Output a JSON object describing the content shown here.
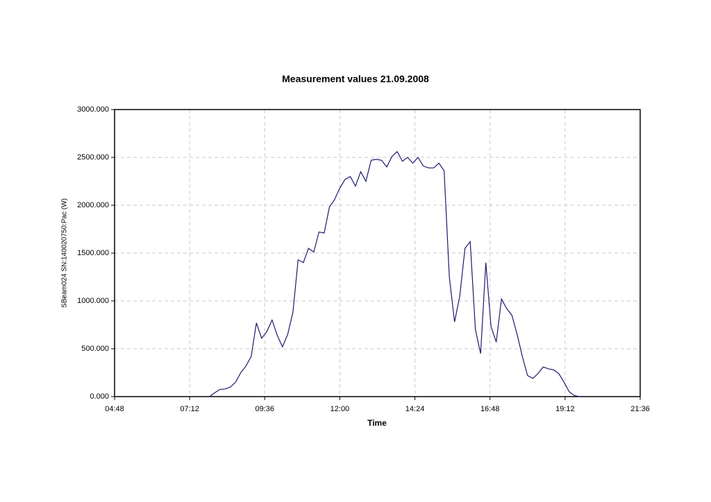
{
  "chart_data": {
    "type": "line",
    "title": "Measurement values 21.09.2008",
    "xlabel": "Time",
    "ylabel": "SBeam024 SN:140020750:Pac (W)",
    "color": "#1a1a6e",
    "grid": true,
    "x": [
      "07:50",
      "08:00",
      "08:10",
      "08:20",
      "08:30",
      "08:40",
      "08:50",
      "09:00",
      "09:10",
      "09:20",
      "09:30",
      "09:40",
      "09:50",
      "10:00",
      "10:10",
      "10:20",
      "10:30",
      "10:40",
      "10:50",
      "11:00",
      "11:10",
      "11:20",
      "11:30",
      "11:40",
      "11:50",
      "12:00",
      "12:10",
      "12:20",
      "12:30",
      "12:40",
      "12:50",
      "13:00",
      "13:10",
      "13:20",
      "13:30",
      "13:40",
      "13:50",
      "14:00",
      "14:10",
      "14:20",
      "14:30",
      "14:40",
      "14:50",
      "15:00",
      "15:10",
      "15:20",
      "15:30",
      "15:40",
      "15:50",
      "16:00",
      "16:10",
      "16:20",
      "16:30",
      "16:40",
      "16:50",
      "17:00",
      "17:10",
      "17:20",
      "17:30",
      "17:40",
      "17:50",
      "18:00",
      "18:10",
      "18:20",
      "18:30",
      "18:40",
      "18:50",
      "19:00",
      "19:10",
      "19:20",
      "19:30",
      "19:40"
    ],
    "values": [
      0,
      40,
      75,
      80,
      100,
      150,
      250,
      320,
      420,
      770,
      610,
      680,
      800,
      640,
      520,
      650,
      880,
      1430,
      1400,
      1550,
      1510,
      1720,
      1710,
      1980,
      2060,
      2180,
      2270,
      2300,
      2200,
      2350,
      2250,
      2470,
      2480,
      2470,
      2400,
      2510,
      2560,
      2460,
      2500,
      2440,
      2500,
      2410,
      2390,
      2390,
      2440,
      2360,
      1250,
      780,
      1050,
      1550,
      1620,
      700,
      450,
      1400,
      730,
      570,
      1020,
      920,
      850,
      650,
      420,
      220,
      190,
      240,
      310,
      290,
      280,
      240,
      150,
      50,
      10,
      0
    ],
    "xlim": [
      "04:48",
      "21:36"
    ],
    "xticks": [
      "04:48",
      "07:12",
      "09:36",
      "12:00",
      "14:24",
      "16:48",
      "19:12",
      "21:36"
    ],
    "ylim": [
      0,
      3000
    ],
    "yticks": [
      {
        "value": 0,
        "label": "0.000"
      },
      {
        "value": 500,
        "label": "500.000"
      },
      {
        "value": 1000,
        "label": "1000.000"
      },
      {
        "value": 1500,
        "label": "1500.000"
      },
      {
        "value": 2000,
        "label": "2000.000"
      },
      {
        "value": 2500,
        "label": "2500.000"
      },
      {
        "value": 3000,
        "label": "3000.000"
      }
    ]
  }
}
